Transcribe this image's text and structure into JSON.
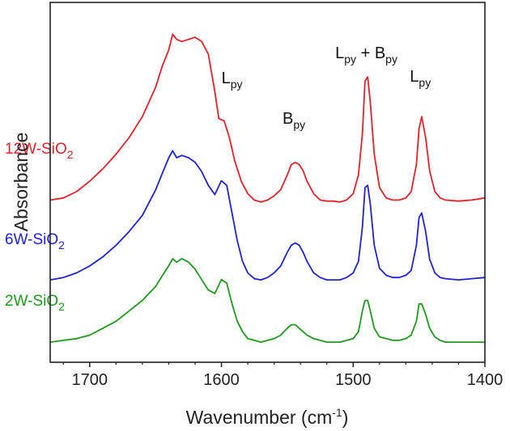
{
  "chart_data": {
    "type": "line",
    "xlabel": {
      "main": "Wavenumber (cm",
      "sup": "-1",
      "tail": ")"
    },
    "ylabel": "Absorbance",
    "xlim": [
      1730,
      1400
    ],
    "x_reversed": true,
    "xticks": [
      {
        "value": 1700,
        "label": "1700"
      },
      {
        "value": 1600,
        "label": "1600"
      },
      {
        "value": 1500,
        "label": "1500"
      },
      {
        "value": 1400,
        "label": "1400"
      }
    ],
    "y_ticks_shown": false,
    "grid": false,
    "annotations": [
      {
        "base": "L",
        "sub": "py",
        "x": 1592
      },
      {
        "base": "B",
        "sub": "py",
        "x": 1545
      },
      {
        "base": "L",
        "sub": "py",
        "base2": "B",
        "sub2": "py",
        "join": " + ",
        "x": 1490
      },
      {
        "base": "L",
        "sub": "py",
        "x": 1449
      }
    ],
    "series": [
      {
        "name": "12W-SiO2",
        "label": {
          "main": "12W-SiO",
          "sub": "2"
        },
        "color": "#e8202a",
        "x": [
          1730,
          1720,
          1710,
          1700,
          1690,
          1680,
          1670,
          1660,
          1650,
          1645,
          1640,
          1637,
          1634,
          1630,
          1625,
          1620,
          1615,
          1610,
          1605,
          1602,
          1598,
          1594,
          1590,
          1585,
          1580,
          1575,
          1570,
          1565,
          1560,
          1555,
          1550,
          1547,
          1544,
          1541,
          1538,
          1535,
          1530,
          1525,
          1520,
          1515,
          1510,
          1505,
          1500,
          1496,
          1493,
          1491,
          1489,
          1487,
          1484,
          1480,
          1475,
          1470,
          1465,
          1460,
          1456,
          1452,
          1450,
          1448,
          1445,
          1442,
          1438,
          1434,
          1430,
          1420,
          1410,
          1400
        ],
        "y": [
          0.08,
          0.09,
          0.12,
          0.17,
          0.23,
          0.3,
          0.38,
          0.48,
          0.62,
          0.72,
          0.8,
          0.875,
          0.85,
          0.84,
          0.85,
          0.86,
          0.84,
          0.78,
          0.6,
          0.47,
          0.46,
          0.38,
          0.27,
          0.17,
          0.11,
          0.08,
          0.07,
          0.08,
          0.1,
          0.13,
          0.2,
          0.25,
          0.26,
          0.25,
          0.22,
          0.17,
          0.11,
          0.08,
          0.075,
          0.075,
          0.07,
          0.08,
          0.11,
          0.2,
          0.4,
          0.65,
          0.67,
          0.55,
          0.3,
          0.14,
          0.09,
          0.08,
          0.08,
          0.09,
          0.12,
          0.25,
          0.42,
          0.48,
          0.38,
          0.22,
          0.12,
          0.09,
          0.08,
          0.075,
          0.08,
          0.09
        ]
      },
      {
        "name": "6W-SiO2",
        "label": {
          "main": "6W-SiO",
          "sub": "2"
        },
        "color": "#1f22d8",
        "x": [
          1730,
          1720,
          1710,
          1700,
          1690,
          1680,
          1670,
          1660,
          1650,
          1645,
          1640,
          1637,
          1634,
          1630,
          1625,
          1620,
          1615,
          1610,
          1605,
          1600,
          1596,
          1592,
          1588,
          1584,
          1580,
          1575,
          1570,
          1565,
          1560,
          1555,
          1550,
          1547,
          1544,
          1541,
          1538,
          1535,
          1530,
          1525,
          1520,
          1515,
          1510,
          1505,
          1500,
          1496,
          1493,
          1491,
          1489,
          1487,
          1484,
          1480,
          1475,
          1470,
          1465,
          1460,
          1456,
          1452,
          1450,
          1448,
          1445,
          1442,
          1438,
          1434,
          1430,
          1420,
          1410,
          1400
        ],
        "y": [
          0.07,
          0.08,
          0.1,
          0.13,
          0.17,
          0.22,
          0.28,
          0.35,
          0.46,
          0.53,
          0.6,
          0.63,
          0.6,
          0.61,
          0.6,
          0.58,
          0.54,
          0.48,
          0.44,
          0.5,
          0.48,
          0.36,
          0.24,
          0.15,
          0.1,
          0.075,
          0.07,
          0.08,
          0.1,
          0.13,
          0.19,
          0.22,
          0.23,
          0.22,
          0.19,
          0.15,
          0.1,
          0.08,
          0.07,
          0.07,
          0.07,
          0.08,
          0.1,
          0.15,
          0.3,
          0.47,
          0.48,
          0.4,
          0.22,
          0.12,
          0.09,
          0.08,
          0.08,
          0.09,
          0.11,
          0.22,
          0.34,
          0.36,
          0.28,
          0.16,
          0.1,
          0.08,
          0.075,
          0.07,
          0.075,
          0.08
        ]
      },
      {
        "name": "2W-SiO2",
        "label": {
          "main": "2W-SiO",
          "sub": "2"
        },
        "color": "#1e9a1e",
        "x": [
          1730,
          1720,
          1710,
          1700,
          1690,
          1680,
          1670,
          1660,
          1650,
          1645,
          1640,
          1637,
          1634,
          1630,
          1625,
          1620,
          1615,
          1610,
          1605,
          1600,
          1596,
          1592,
          1588,
          1584,
          1580,
          1575,
          1570,
          1565,
          1560,
          1555,
          1550,
          1547,
          1544,
          1541,
          1538,
          1535,
          1530,
          1525,
          1520,
          1515,
          1510,
          1505,
          1500,
          1496,
          1493,
          1491,
          1489,
          1487,
          1484,
          1480,
          1475,
          1470,
          1465,
          1460,
          1456,
          1452,
          1450,
          1448,
          1445,
          1442,
          1438,
          1434,
          1430,
          1420,
          1410,
          1400
        ],
        "y": [
          0.03,
          0.035,
          0.04,
          0.05,
          0.07,
          0.09,
          0.12,
          0.15,
          0.19,
          0.22,
          0.25,
          0.27,
          0.26,
          0.27,
          0.26,
          0.24,
          0.21,
          0.18,
          0.17,
          0.21,
          0.2,
          0.14,
          0.09,
          0.06,
          0.04,
          0.035,
          0.03,
          0.035,
          0.04,
          0.05,
          0.07,
          0.08,
          0.08,
          0.07,
          0.06,
          0.05,
          0.04,
          0.035,
          0.03,
          0.03,
          0.03,
          0.035,
          0.04,
          0.06,
          0.12,
          0.15,
          0.15,
          0.12,
          0.07,
          0.045,
          0.04,
          0.035,
          0.035,
          0.04,
          0.05,
          0.09,
          0.14,
          0.14,
          0.11,
          0.07,
          0.045,
          0.035,
          0.03,
          0.03,
          0.03,
          0.03
        ]
      }
    ]
  }
}
